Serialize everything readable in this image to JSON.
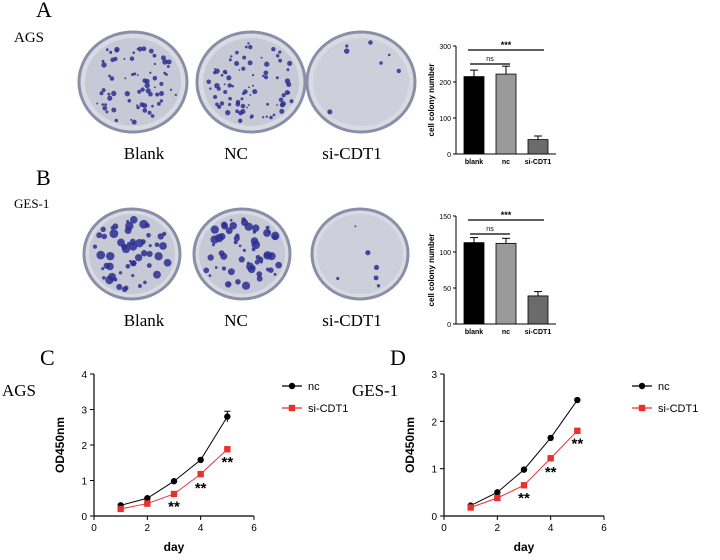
{
  "panels": {
    "A": {
      "letter": "A",
      "cell_line": "AGS"
    },
    "B": {
      "letter": "B",
      "cell_line": "GES-1"
    },
    "C": {
      "letter": "C",
      "cell_line": "AGS"
    },
    "D": {
      "letter": "D",
      "cell_line": "GES-1"
    }
  },
  "plate_labels": [
    "Blank",
    "NC",
    "si-CDT1"
  ],
  "plate_color": "#2b2f8f",
  "chart_data": [
    {
      "type": "bar",
      "panel": "A",
      "categories": [
        "blank",
        "nc",
        "si-CDT1"
      ],
      "values": [
        215,
        222,
        40
      ],
      "errors": [
        18,
        22,
        10
      ],
      "colors": [
        "#000000",
        "#9a9a9a",
        "#6b6b6b"
      ],
      "ylabel": "cell colony number",
      "ylim": [
        0,
        300
      ],
      "yticks": [
        0,
        100,
        200,
        300
      ],
      "significance": [
        {
          "from": 0,
          "to": 1,
          "label": "ns"
        },
        {
          "from": 0,
          "to": 2,
          "label": "***"
        }
      ]
    },
    {
      "type": "bar",
      "panel": "B",
      "categories": [
        "blank",
        "nc",
        "si-CDT1"
      ],
      "values": [
        113,
        112,
        39
      ],
      "errors": [
        7,
        7,
        6
      ],
      "colors": [
        "#000000",
        "#9a9a9a",
        "#6b6b6b"
      ],
      "ylabel": "cell colony number",
      "ylim": [
        0,
        150
      ],
      "yticks": [
        0,
        50,
        100,
        150
      ],
      "significance": [
        {
          "from": 0,
          "to": 1,
          "label": "ns"
        },
        {
          "from": 0,
          "to": 2,
          "label": "***"
        }
      ]
    },
    {
      "type": "line",
      "panel": "C",
      "xlabel": "day",
      "ylabel": "OD450nm",
      "xlim": [
        0,
        6
      ],
      "ylim": [
        0,
        4
      ],
      "xticks": [
        0,
        2,
        4,
        6
      ],
      "yticks": [
        0,
        1,
        2,
        3,
        4
      ],
      "x": [
        1,
        2,
        3,
        4,
        5
      ],
      "series": [
        {
          "name": "nc",
          "values": [
            0.3,
            0.5,
            0.98,
            1.58,
            2.8
          ],
          "errors": [
            0.03,
            0.04,
            0.05,
            0.06,
            0.15
          ],
          "color": "#000000",
          "marker": "circle"
        },
        {
          "name": "si-CDT1",
          "values": [
            0.2,
            0.35,
            0.62,
            1.18,
            1.88
          ],
          "errors": [
            0.03,
            0.03,
            0.06,
            0.08,
            0.06
          ],
          "color": "#e8312f",
          "marker": "square"
        }
      ],
      "annotations": [
        {
          "x": 3,
          "y": 0.3,
          "text": "**"
        },
        {
          "x": 4,
          "y": 0.82,
          "text": "**"
        },
        {
          "x": 5,
          "y": 1.55,
          "text": "**"
        }
      ]
    },
    {
      "type": "line",
      "panel": "D",
      "xlabel": "day",
      "ylabel": "OD450nm",
      "xlim": [
        0,
        6
      ],
      "ylim": [
        0,
        3
      ],
      "xticks": [
        0,
        2,
        4,
        6
      ],
      "yticks": [
        0,
        1,
        2,
        3
      ],
      "x": [
        1,
        2,
        3,
        4,
        5
      ],
      "series": [
        {
          "name": "nc",
          "values": [
            0.22,
            0.5,
            0.98,
            1.65,
            2.45
          ],
          "errors": [
            0.02,
            0.03,
            0.04,
            0.04,
            0.04
          ],
          "color": "#000000",
          "marker": "circle"
        },
        {
          "name": "si-CDT1",
          "values": [
            0.18,
            0.38,
            0.65,
            1.22,
            1.8
          ],
          "errors": [
            0.02,
            0.03,
            0.04,
            0.05,
            0.05
          ],
          "color": "#e8312f",
          "marker": "square"
        }
      ],
      "annotations": [
        {
          "x": 3,
          "y": 0.4,
          "text": "**"
        },
        {
          "x": 4,
          "y": 0.95,
          "text": "**"
        },
        {
          "x": 5,
          "y": 1.55,
          "text": "**"
        }
      ]
    }
  ]
}
